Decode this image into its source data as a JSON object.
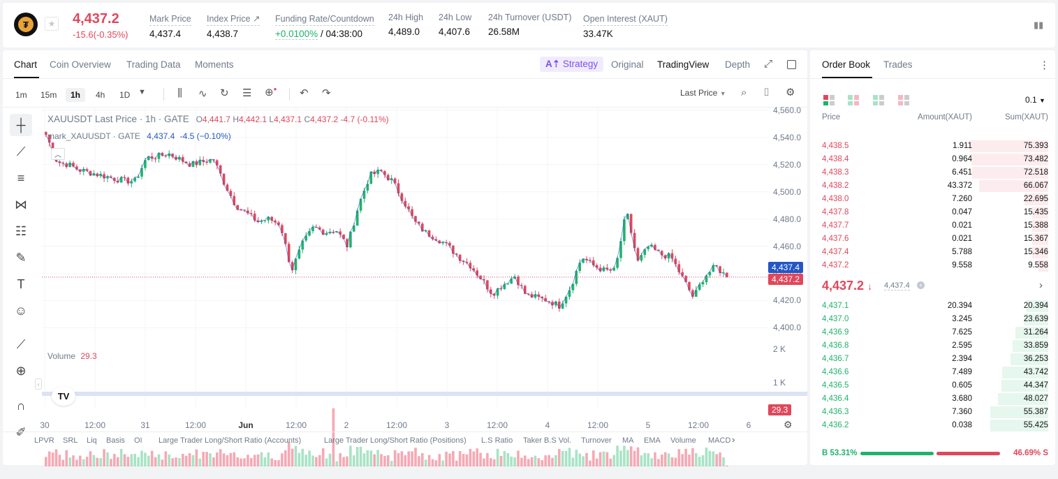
{
  "header": {
    "last_price": "4,437.2",
    "change": "-15.6(-0.35%)",
    "stats": [
      {
        "label": "Mark Price",
        "value": "4,437.4"
      },
      {
        "label": "Index Price ↗",
        "value": "4,438.7"
      },
      {
        "label": "Funding Rate/Countdown",
        "value_a": "+0.0100%",
        "value_b": " / 04:38:00"
      },
      {
        "label": "24h High",
        "value": "4,489.0"
      },
      {
        "label": "24h Low",
        "value": "4,407.6"
      },
      {
        "label": "24h Turnover (USDT)",
        "value": "26.58M"
      },
      {
        "label": "Open Interest (XAUT)",
        "value": "33.47K"
      }
    ]
  },
  "chart_tabs": [
    "Chart",
    "Coin Overview",
    "Trading Data",
    "Moments"
  ],
  "view_tabs": {
    "strategy": "Strategy",
    "original": "Original",
    "tradingview": "TradingView",
    "depth": "Depth"
  },
  "timeframes": [
    "1m",
    "15m",
    "1h",
    "4h",
    "1D"
  ],
  "active_timeframe": "1h",
  "last_price_select": "Last Price",
  "legend": {
    "symbol": "XAUUSDT Last Price · 1h · GATE",
    "o_label": "O",
    "o": "4,441.7",
    "h_label": "H",
    "h": "4,442.1",
    "l_label": "L",
    "l": "4,437.1",
    "c_label": "C",
    "c": "4,437.2",
    "chg": "-4.7 (-0.11%)",
    "mark_label": "mark_XAUUSDT · GATE",
    "mark_value": "4,437.4",
    "mark_chg": "-4.5 (−0.10%)",
    "volume_label": "Volume",
    "volume_value": "29.3"
  },
  "price_axis": [
    "4,560.0",
    "4,540.0",
    "4,520.0",
    "4,500.0",
    "4,480.0",
    "4,460.0",
    "4,440.0",
    "4,420.0",
    "4,400.0"
  ],
  "volume_axis": [
    "2 K",
    "1 K"
  ],
  "time_axis": [
    "30",
    "12:00",
    "31",
    "12:00",
    "Jun",
    "12:00",
    "2",
    "12:00",
    "3",
    "12:00",
    "4",
    "12:00",
    "5",
    "12:00",
    "6"
  ],
  "tags": {
    "mark": "4,437.4",
    "last": "4,437.2",
    "volume": "29.3"
  },
  "indicators": [
    "LPVR",
    "SRL",
    "Liq",
    "Basis",
    "OI",
    "Large Trader Long/Short Ratio (Accounts)",
    "Large Trader Long/Short Ratio (Positions)",
    "L.S Ratio",
    "Taker B.S Vol.",
    "Turnover",
    "MA",
    "EMA",
    "Volume",
    "MACD"
  ],
  "colors": {
    "up": "#20b26c",
    "down": "#e0475b",
    "accent": "#7b4ff0",
    "mark": "#2456c6"
  },
  "chart_data": {
    "type": "candlestick",
    "title": "XAUUSDT Last Price · 1h · GATE",
    "ylim": [
      4395,
      4562
    ],
    "close_path": [
      4542,
      4522,
      4520,
      4516,
      4514,
      4512,
      4510,
      4508,
      4508,
      4525,
      4526,
      4528,
      4524,
      4520,
      4522,
      4524,
      4506,
      4490,
      4484,
      4478,
      4480,
      4476,
      4442,
      4462,
      4474,
      4470,
      4472,
      4460,
      4490,
      4512,
      4515,
      4508,
      4494,
      4478,
      4470,
      4466,
      4460,
      4452,
      4446,
      4436,
      4425,
      4432,
      4438,
      4424,
      4422,
      4420,
      4416,
      4430,
      4452,
      4446,
      4442,
      4442,
      4486,
      4448,
      4460,
      4454,
      4452,
      4437,
      4422,
      4438,
      4445,
      4437.2
    ],
    "volume_ylim": [
      0,
      2200
    ],
    "last_volume": 29.3
  },
  "order_book": {
    "tabs": [
      "Order Book",
      "Trades"
    ],
    "precision": "0.1",
    "headers": [
      "Price",
      "Amount(XAUT)",
      "Sum(XAUT)"
    ],
    "asks": [
      {
        "price": "4,438.5",
        "amount": "1.911",
        "sum": "75.393",
        "sum_num": 75.393
      },
      {
        "price": "4,438.4",
        "amount": "0.964",
        "sum": "73.482",
        "sum_num": 73.482
      },
      {
        "price": "4,438.3",
        "amount": "6.451",
        "sum": "72.518",
        "sum_num": 72.518
      },
      {
        "price": "4,438.2",
        "amount": "43.372",
        "sum": "66.067",
        "sum_num": 66.067
      },
      {
        "price": "4,438.0",
        "amount": "7.260",
        "sum": "22.695",
        "sum_num": 22.695
      },
      {
        "price": "4,437.8",
        "amount": "0.047",
        "sum": "15.435",
        "sum_num": 15.435
      },
      {
        "price": "4,437.7",
        "amount": "0.021",
        "sum": "15.388",
        "sum_num": 15.388
      },
      {
        "price": "4,437.6",
        "amount": "0.021",
        "sum": "15.367",
        "sum_num": 15.367
      },
      {
        "price": "4,437.4",
        "amount": "5.788",
        "sum": "15.346",
        "sum_num": 15.346
      },
      {
        "price": "4,437.2",
        "amount": "9.558",
        "sum": "9.558",
        "sum_num": 9.558
      }
    ],
    "mid_price": "4,437.2",
    "mid_mark": "4,437.4",
    "bids": [
      {
        "price": "4,437.1",
        "amount": "20.394",
        "sum": "20.394",
        "sum_num": 20.394
      },
      {
        "price": "4,437.0",
        "amount": "3.245",
        "sum": "23.639",
        "sum_num": 23.639
      },
      {
        "price": "4,436.9",
        "amount": "7.625",
        "sum": "31.264",
        "sum_num": 31.264
      },
      {
        "price": "4,436.8",
        "amount": "2.595",
        "sum": "33.859",
        "sum_num": 33.859
      },
      {
        "price": "4,436.7",
        "amount": "2.394",
        "sum": "36.253",
        "sum_num": 36.253
      },
      {
        "price": "4,436.6",
        "amount": "7.489",
        "sum": "43.742",
        "sum_num": 43.742
      },
      {
        "price": "4,436.5",
        "amount": "0.605",
        "sum": "44.347",
        "sum_num": 44.347
      },
      {
        "price": "4,436.4",
        "amount": "3.680",
        "sum": "48.027",
        "sum_num": 48.027
      },
      {
        "price": "4,436.3",
        "amount": "7.360",
        "sum": "55.387",
        "sum_num": 55.387
      },
      {
        "price": "4,436.2",
        "amount": "0.038",
        "sum": "55.425",
        "sum_num": 55.425
      }
    ],
    "buy_ratio": "B 53.31%",
    "sell_ratio": "46.69% S",
    "buy_fraction": 0.5331
  }
}
